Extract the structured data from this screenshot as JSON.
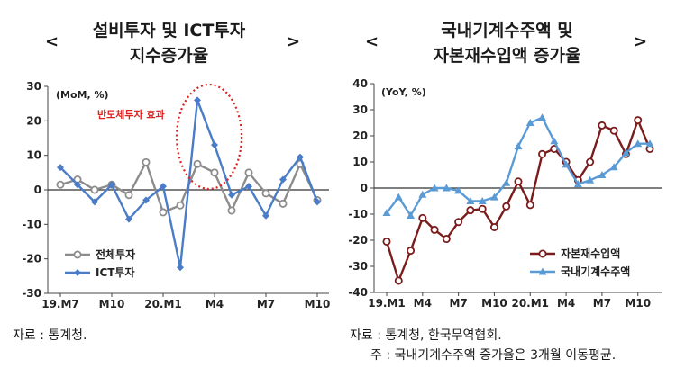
{
  "colors": {
    "gray": "#8c8c8c",
    "blue": "#4a7cc7",
    "lightblue": "#5b9bd5",
    "darkred": "#7b1c1c",
    "annotation": "#e02020"
  },
  "left": {
    "title_line1": "설비투자 및 ICT투자",
    "title_line2": "지수증가율",
    "bracket_left": "<",
    "bracket_right": ">",
    "source": "자료 : 통계청."
  },
  "right": {
    "title_line1": "국내기계수주액 및",
    "title_line2": "자본재수입액 증가율",
    "bracket_left": "<",
    "bracket_right": ">",
    "source": "자료 : 통계청, 한국무역협회.",
    "note": "주 : 국내기계수주액 증가율은 3개월 이동평균."
  },
  "chart_data": [
    {
      "type": "line",
      "unit_label": "(MoM, %)",
      "ylim": [
        -30,
        30
      ],
      "yticks": [
        -30,
        -20,
        -10,
        0,
        10,
        20,
        30
      ],
      "x_labels": [
        "19.M7",
        "M10",
        "20.M1",
        "M4",
        "M7",
        "M10"
      ],
      "annotation": "반도체투자 효과",
      "legend_position": "bottom-left",
      "grid": false,
      "series": [
        {
          "name": "전체투자",
          "color": "#8c8c8c",
          "marker": "hollow-circle",
          "values": [
            1.5,
            3,
            0,
            1.5,
            -1.5,
            8,
            -6.5,
            -4.5,
            7.5,
            5,
            -6,
            5,
            -1,
            -4,
            7.5,
            -3
          ]
        },
        {
          "name": "ICT투자",
          "color": "#4a7cc7",
          "marker": "diamond",
          "values": [
            6.5,
            1.5,
            -3.5,
            1.5,
            -8.5,
            -3,
            1,
            -22.5,
            26,
            13,
            -1.5,
            1,
            -7.5,
            3,
            9.5,
            -3.5
          ]
        }
      ]
    },
    {
      "type": "line",
      "unit_label": "(YoY, %)",
      "ylim": [
        -40,
        40
      ],
      "yticks": [
        -40,
        -30,
        -20,
        -10,
        0,
        10,
        20,
        30,
        40
      ],
      "x_labels": [
        "19.M1",
        "M4",
        "M7",
        "M10",
        "20.M1",
        "M4",
        "M7",
        "M10"
      ],
      "legend_position": "bottom-right",
      "grid": false,
      "series": [
        {
          "name": "자본재수입액",
          "color": "#7b1c1c",
          "marker": "hollow-circle",
          "values": [
            -20.5,
            -35.5,
            -24,
            -11.5,
            -16,
            -19.5,
            -13,
            -8.5,
            -8,
            -15,
            -7,
            2.5,
            -6.5,
            13,
            15,
            10,
            3,
            10,
            24,
            22,
            13,
            26,
            15
          ]
        },
        {
          "name": "국내기계수주액",
          "color": "#5b9bd5",
          "marker": "triangle",
          "values": [
            -9.5,
            -3.5,
            -10.5,
            -2.5,
            0,
            0,
            -1,
            -5,
            -5,
            -3.5,
            2,
            16,
            25,
            27,
            18,
            9,
            1.5,
            3,
            5,
            8,
            13.5,
            17,
            17
          ]
        }
      ]
    }
  ]
}
